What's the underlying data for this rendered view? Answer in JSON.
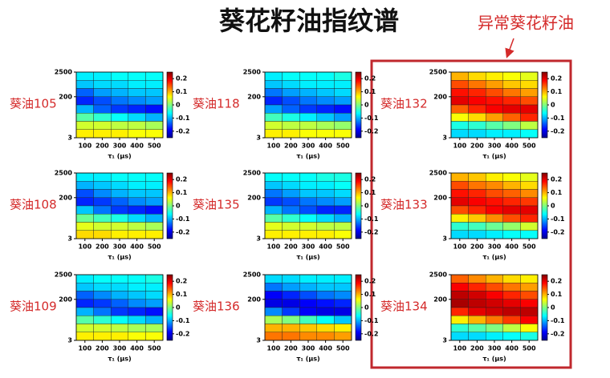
{
  "title": "葵花籽油指纹谱",
  "annotation": "异常葵花籽油",
  "chart_data": [
    {
      "type": "heatmap",
      "label": "葵油105",
      "x_label": "τ₁ (μs)",
      "xlim": [
        50,
        550
      ],
      "xticks": [
        100,
        200,
        300,
        400,
        500
      ],
      "ylim": [
        3,
        2500
      ],
      "yticks": [
        3,
        200,
        2500
      ],
      "log_y": true,
      "clim": [
        -0.25,
        0.25
      ],
      "cticks": [
        0.2,
        0.1,
        0,
        -0.1,
        -0.2
      ],
      "values": [
        [
          -0.07,
          -0.07,
          -0.06,
          -0.06,
          -0.06
        ],
        [
          -0.09,
          -0.08,
          -0.08,
          -0.07,
          -0.07
        ],
        [
          -0.14,
          -0.11,
          -0.1,
          -0.09,
          -0.09
        ],
        [
          -0.17,
          -0.15,
          -0.13,
          -0.12,
          -0.11
        ],
        [
          -0.1,
          -0.14,
          -0.16,
          -0.17,
          -0.18
        ],
        [
          -0.02,
          -0.04,
          -0.06,
          -0.08,
          -0.1
        ],
        [
          0.04,
          0.04,
          0.03,
          0.03,
          0.02
        ],
        [
          0.07,
          0.07,
          0.07,
          0.06,
          0.06
        ]
      ]
    },
    {
      "type": "heatmap",
      "label": "葵油118",
      "x_label": "τ₁ (μs)",
      "xlim": [
        50,
        550
      ],
      "xticks": [
        100,
        200,
        300,
        400,
        500
      ],
      "ylim": [
        3,
        2500
      ],
      "yticks": [
        3,
        200,
        2500
      ],
      "log_y": true,
      "clim": [
        -0.25,
        0.25
      ],
      "cticks": [
        0.2,
        0.1,
        0,
        -0.1,
        -0.2
      ],
      "values": [
        [
          -0.07,
          -0.06,
          -0.06,
          -0.06,
          -0.05
        ],
        [
          -0.09,
          -0.08,
          -0.07,
          -0.07,
          -0.07
        ],
        [
          -0.13,
          -0.11,
          -0.1,
          -0.09,
          -0.08
        ],
        [
          -0.17,
          -0.15,
          -0.13,
          -0.12,
          -0.11
        ],
        [
          -0.11,
          -0.14,
          -0.16,
          -0.17,
          -0.18
        ],
        [
          -0.03,
          -0.05,
          -0.07,
          -0.09,
          -0.11
        ],
        [
          0.04,
          0.03,
          0.03,
          0.02,
          0.01
        ],
        [
          0.07,
          0.07,
          0.06,
          0.06,
          0.06
        ]
      ]
    },
    {
      "type": "heatmap",
      "label": "葵油132",
      "x_label": "τ₁ (μs)",
      "xlim": [
        50,
        550
      ],
      "xticks": [
        100,
        200,
        300,
        400,
        500
      ],
      "ylim": [
        3,
        2500
      ],
      "yticks": [
        3,
        200,
        2500
      ],
      "log_y": true,
      "clim": [
        -0.25,
        0.25
      ],
      "cticks": [
        0.2,
        0.1,
        0,
        -0.1,
        -0.2
      ],
      "values": [
        [
          0.1,
          0.08,
          0.07,
          0.06,
          0.05
        ],
        [
          0.15,
          0.13,
          0.11,
          0.09,
          0.08
        ],
        [
          0.18,
          0.17,
          0.15,
          0.13,
          0.11
        ],
        [
          0.2,
          0.19,
          0.18,
          0.17,
          0.15
        ],
        [
          0.14,
          0.17,
          0.19,
          0.2,
          0.2
        ],
        [
          0.06,
          0.08,
          0.11,
          0.14,
          0.17
        ],
        [
          -0.05,
          -0.04,
          -0.02,
          0,
          0.03
        ],
        [
          -0.08,
          -0.08,
          -0.07,
          -0.07,
          -0.06
        ]
      ]
    },
    {
      "type": "heatmap",
      "label": "葵油108",
      "x_label": "τ₁ (μs)",
      "xlim": [
        50,
        550
      ],
      "xticks": [
        100,
        200,
        300,
        400,
        500
      ],
      "ylim": [
        3,
        2500
      ],
      "yticks": [
        3,
        200,
        2500
      ],
      "log_y": true,
      "clim": [
        -0.25,
        0.25
      ],
      "cticks": [
        0.2,
        0.1,
        0,
        -0.1,
        -0.2
      ],
      "values": [
        [
          -0.07,
          -0.07,
          -0.06,
          -0.06,
          -0.06
        ],
        [
          -0.1,
          -0.09,
          -0.08,
          -0.07,
          -0.07
        ],
        [
          -0.15,
          -0.12,
          -0.1,
          -0.09,
          -0.09
        ],
        [
          -0.17,
          -0.16,
          -0.14,
          -0.12,
          -0.11
        ],
        [
          -0.09,
          -0.13,
          -0.16,
          -0.17,
          -0.18
        ],
        [
          -0.01,
          -0.03,
          -0.05,
          -0.08,
          -0.1
        ],
        [
          0.05,
          0.04,
          0.04,
          0.03,
          0.02
        ],
        [
          0.08,
          0.08,
          0.07,
          0.07,
          0.07
        ]
      ]
    },
    {
      "type": "heatmap",
      "label": "葵油135",
      "x_label": "τ₁ (μs)",
      "xlim": [
        50,
        550
      ],
      "xticks": [
        100,
        200,
        300,
        400,
        500
      ],
      "ylim": [
        3,
        2500
      ],
      "yticks": [
        3,
        200,
        2500
      ],
      "log_y": true,
      "clim": [
        -0.25,
        0.25
      ],
      "cticks": [
        0.2,
        0.1,
        0,
        -0.1,
        -0.2
      ],
      "values": [
        [
          -0.06,
          -0.06,
          -0.06,
          -0.05,
          -0.05
        ],
        [
          -0.09,
          -0.08,
          -0.07,
          -0.07,
          -0.06
        ],
        [
          -0.13,
          -0.11,
          -0.09,
          -0.09,
          -0.08
        ],
        [
          -0.16,
          -0.15,
          -0.13,
          -0.12,
          -0.11
        ],
        [
          -0.1,
          -0.13,
          -0.15,
          -0.17,
          -0.17
        ],
        [
          -0.02,
          -0.04,
          -0.06,
          -0.08,
          -0.1
        ],
        [
          0.05,
          0.04,
          0.04,
          0.03,
          0.03
        ],
        [
          0.07,
          0.07,
          0.07,
          0.07,
          0.06
        ]
      ]
    },
    {
      "type": "heatmap",
      "label": "葵油133",
      "x_label": "τ₁ (μs)",
      "xlim": [
        50,
        550
      ],
      "xticks": [
        100,
        200,
        300,
        400,
        500
      ],
      "ylim": [
        3,
        2500
      ],
      "yticks": [
        3,
        200,
        2500
      ],
      "log_y": true,
      "clim": [
        -0.25,
        0.25
      ],
      "cticks": [
        0.2,
        0.1,
        0,
        -0.1,
        -0.2
      ],
      "values": [
        [
          0.1,
          0.09,
          0.07,
          0.06,
          0.05
        ],
        [
          0.15,
          0.13,
          0.12,
          0.1,
          0.08
        ],
        [
          0.18,
          0.17,
          0.15,
          0.14,
          0.12
        ],
        [
          0.2,
          0.19,
          0.18,
          0.17,
          0.16
        ],
        [
          0.15,
          0.17,
          0.19,
          0.2,
          0.2
        ],
        [
          0.07,
          0.09,
          0.12,
          0.15,
          0.17
        ],
        [
          -0.04,
          -0.03,
          -0.01,
          0.01,
          0.04
        ],
        [
          -0.08,
          -0.08,
          -0.07,
          -0.06,
          -0.06
        ]
      ]
    },
    {
      "type": "heatmap",
      "label": "葵油109",
      "x_label": "τ₁ (μs)",
      "xlim": [
        50,
        550
      ],
      "xticks": [
        100,
        200,
        300,
        400,
        500
      ],
      "ylim": [
        3,
        2500
      ],
      "yticks": [
        3,
        200,
        2500
      ],
      "log_y": true,
      "clim": [
        -0.25,
        0.25
      ],
      "cticks": [
        0.2,
        0.1,
        0,
        -0.1,
        -0.2
      ],
      "values": [
        [
          -0.07,
          -0.06,
          -0.06,
          -0.06,
          -0.05
        ],
        [
          -0.09,
          -0.08,
          -0.08,
          -0.07,
          -0.07
        ],
        [
          -0.14,
          -0.12,
          -0.1,
          -0.09,
          -0.08
        ],
        [
          -0.17,
          -0.16,
          -0.14,
          -0.12,
          -0.11
        ],
        [
          -0.1,
          -0.13,
          -0.16,
          -0.17,
          -0.18
        ],
        [
          -0.02,
          -0.04,
          -0.06,
          -0.08,
          -0.1
        ],
        [
          0.04,
          0.04,
          0.03,
          0.02,
          0.02
        ],
        [
          0.07,
          0.07,
          0.07,
          0.06,
          0.06
        ]
      ]
    },
    {
      "type": "heatmap",
      "label": "葵油136",
      "x_label": "τ₁ (μs)",
      "xlim": [
        50,
        550
      ],
      "xticks": [
        100,
        200,
        300,
        400,
        500
      ],
      "ylim": [
        3,
        2500
      ],
      "yticks": [
        3,
        200,
        2500
      ],
      "log_y": true,
      "clim": [
        -0.25,
        0.25
      ],
      "cticks": [
        0.2,
        0.1,
        0,
        -0.1,
        -0.2
      ],
      "values": [
        [
          -0.08,
          -0.08,
          -0.07,
          -0.07,
          -0.07
        ],
        [
          -0.13,
          -0.11,
          -0.1,
          -0.09,
          -0.09
        ],
        [
          -0.19,
          -0.17,
          -0.15,
          -0.13,
          -0.12
        ],
        [
          -0.2,
          -0.2,
          -0.19,
          -0.18,
          -0.17
        ],
        [
          -0.12,
          -0.16,
          -0.19,
          -0.2,
          -0.2
        ],
        [
          0.02,
          0,
          -0.03,
          -0.06,
          -0.09
        ],
        [
          0.1,
          0.1,
          0.09,
          0.08,
          0.07
        ],
        [
          0.13,
          0.13,
          0.12,
          0.12,
          0.11
        ]
      ]
    },
    {
      "type": "heatmap",
      "label": "葵油134",
      "x_label": "τ₁ (μs)",
      "xlim": [
        50,
        550
      ],
      "xticks": [
        100,
        200,
        300,
        400,
        500
      ],
      "ylim": [
        3,
        2500
      ],
      "yticks": [
        3,
        200,
        2500
      ],
      "log_y": true,
      "clim": [
        -0.25,
        0.25
      ],
      "cticks": [
        0.2,
        0.1,
        0,
        -0.1,
        -0.2
      ],
      "values": [
        [
          0.14,
          0.12,
          0.1,
          0.08,
          0.07
        ],
        [
          0.19,
          0.17,
          0.15,
          0.13,
          0.11
        ],
        [
          0.22,
          0.21,
          0.19,
          0.17,
          0.15
        ],
        [
          0.23,
          0.22,
          0.21,
          0.2,
          0.19
        ],
        [
          0.17,
          0.2,
          0.21,
          0.22,
          0.22
        ],
        [
          0.07,
          0.1,
          0.13,
          0.16,
          0.19
        ],
        [
          -0.04,
          -0.02,
          0,
          0.03,
          0.06
        ],
        [
          -0.08,
          -0.08,
          -0.07,
          -0.06,
          -0.05
        ]
      ]
    }
  ]
}
